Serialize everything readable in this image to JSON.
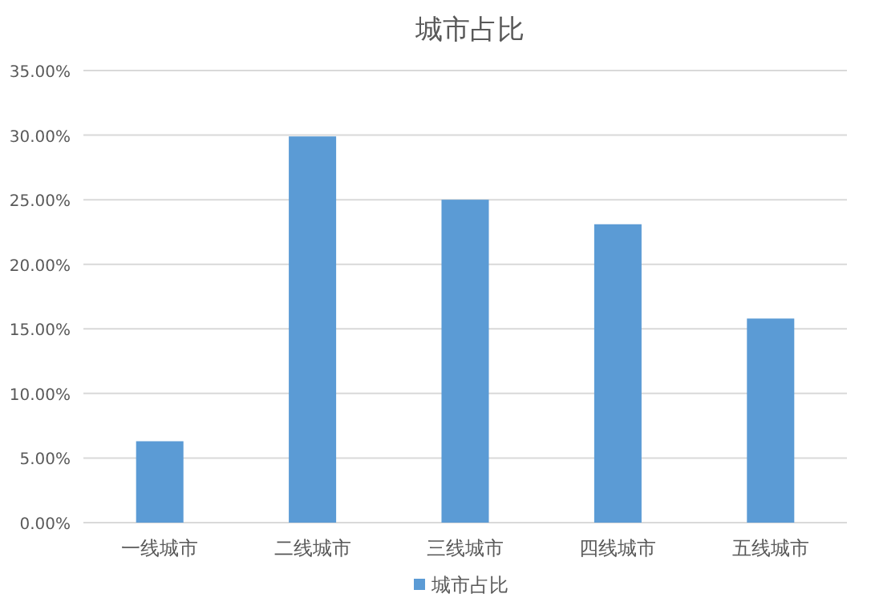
{
  "chart_data": {
    "type": "bar",
    "title": "城市占比",
    "categories": [
      "一线城市",
      "二线城市",
      "三线城市",
      "四线城市",
      "五线城市"
    ],
    "series": [
      {
        "name": "城市占比",
        "color": "#5b9bd5",
        "values": [
          6.3,
          29.9,
          25.0,
          23.1,
          15.8
        ]
      }
    ],
    "ylim": [
      0,
      35
    ],
    "yticks": [
      {
        "value": 0,
        "label": "0.00%"
      },
      {
        "value": 5,
        "label": "5.00%"
      },
      {
        "value": 10,
        "label": "10.00%"
      },
      {
        "value": 15,
        "label": "15.00%"
      },
      {
        "value": 20,
        "label": "20.00%"
      },
      {
        "value": 25,
        "label": "25.00%"
      },
      {
        "value": 30,
        "label": "30.00%"
      },
      {
        "value": 35,
        "label": "35.00%"
      }
    ],
    "grid": "y",
    "legend": "bottom"
  }
}
